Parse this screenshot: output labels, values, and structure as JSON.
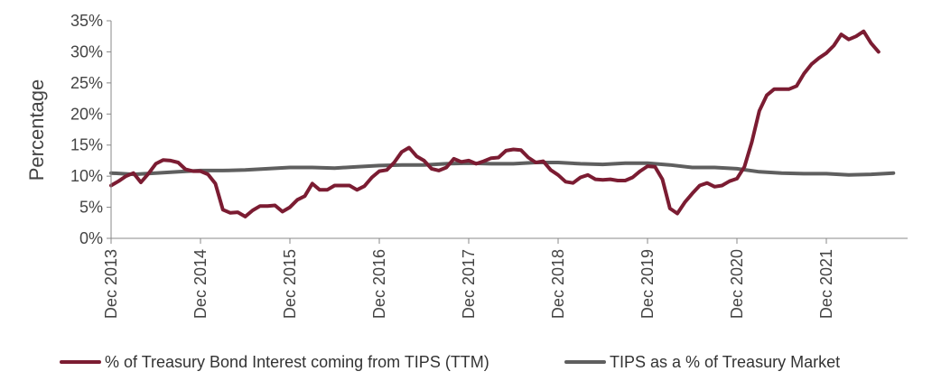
{
  "chart_data": {
    "type": "line",
    "title": "",
    "xlabel": "",
    "ylabel": "Percentage",
    "x_ticks": [
      "Dec 2013",
      "Dec 2014",
      "Dec 2015",
      "Dec 2016",
      "Dec 2017",
      "Dec 2018",
      "Dec 2019",
      "Dec 2020",
      "Dec 2021"
    ],
    "y_ticks": [
      "0%",
      "5%",
      "10%",
      "15%",
      "20%",
      "25%",
      "30%",
      "35%"
    ],
    "ylim": [
      0,
      35
    ],
    "grid": false,
    "legend_position": "bottom",
    "series": [
      {
        "name": "% of Treasury Bond Interest coming from TIPS (TTM)",
        "color": "#7b1c32",
        "points": [
          [
            "2013-12",
            8.5
          ],
          [
            "2014-01",
            9.2
          ],
          [
            "2014-02",
            10.0
          ],
          [
            "2014-03",
            10.5
          ],
          [
            "2014-04",
            9.0
          ],
          [
            "2014-05",
            10.4
          ],
          [
            "2014-06",
            12.0
          ],
          [
            "2014-07",
            12.6
          ],
          [
            "2014-08",
            12.5
          ],
          [
            "2014-09",
            12.2
          ],
          [
            "2014-10",
            11.1
          ],
          [
            "2014-11",
            10.8
          ],
          [
            "2014-12",
            10.8
          ],
          [
            "2015-01",
            10.3
          ],
          [
            "2015-02",
            8.8
          ],
          [
            "2015-03",
            4.6
          ],
          [
            "2015-04",
            4.1
          ],
          [
            "2015-05",
            4.2
          ],
          [
            "2015-06",
            3.5
          ],
          [
            "2015-07",
            4.5
          ],
          [
            "2015-08",
            5.2
          ],
          [
            "2015-09",
            5.2
          ],
          [
            "2015-10",
            5.3
          ],
          [
            "2015-11",
            4.3
          ],
          [
            "2015-12",
            5.0
          ],
          [
            "2016-01",
            6.2
          ],
          [
            "2016-02",
            6.8
          ],
          [
            "2016-03",
            8.8
          ],
          [
            "2016-04",
            7.8
          ],
          [
            "2016-05",
            7.8
          ],
          [
            "2016-06",
            8.5
          ],
          [
            "2016-07",
            8.5
          ],
          [
            "2016-08",
            8.5
          ],
          [
            "2016-09",
            7.8
          ],
          [
            "2016-10",
            8.4
          ],
          [
            "2016-11",
            9.8
          ],
          [
            "2016-12",
            10.8
          ],
          [
            "2017-01",
            11.0
          ],
          [
            "2017-02",
            12.2
          ],
          [
            "2017-03",
            13.9
          ],
          [
            "2017-04",
            14.6
          ],
          [
            "2017-05",
            13.2
          ],
          [
            "2017-06",
            12.5
          ],
          [
            "2017-07",
            11.2
          ],
          [
            "2017-08",
            10.9
          ],
          [
            "2017-09",
            11.4
          ],
          [
            "2017-10",
            12.8
          ],
          [
            "2017-11",
            12.3
          ],
          [
            "2017-12",
            12.5
          ],
          [
            "2018-01",
            12.0
          ],
          [
            "2018-02",
            12.4
          ],
          [
            "2018-03",
            12.9
          ],
          [
            "2018-04",
            13.0
          ],
          [
            "2018-05",
            14.1
          ],
          [
            "2018-06",
            14.3
          ],
          [
            "2018-07",
            14.2
          ],
          [
            "2018-08",
            13.0
          ],
          [
            "2018-09",
            12.2
          ],
          [
            "2018-10",
            12.4
          ],
          [
            "2018-11",
            11.0
          ],
          [
            "2018-12",
            10.2
          ],
          [
            "2019-01",
            9.1
          ],
          [
            "2019-02",
            8.9
          ],
          [
            "2019-03",
            9.8
          ],
          [
            "2019-04",
            10.2
          ],
          [
            "2019-05",
            9.5
          ],
          [
            "2019-06",
            9.4
          ],
          [
            "2019-07",
            9.5
          ],
          [
            "2019-08",
            9.3
          ],
          [
            "2019-09",
            9.3
          ],
          [
            "2019-10",
            9.8
          ],
          [
            "2019-11",
            10.8
          ],
          [
            "2019-12",
            11.6
          ],
          [
            "2020-01",
            11.5
          ],
          [
            "2020-02",
            9.5
          ],
          [
            "2020-03",
            4.8
          ],
          [
            "2020-04",
            4.0
          ],
          [
            "2020-05",
            5.8
          ],
          [
            "2020-06",
            7.2
          ],
          [
            "2020-07",
            8.5
          ],
          [
            "2020-08",
            8.9
          ],
          [
            "2020-09",
            8.3
          ],
          [
            "2020-10",
            8.5
          ],
          [
            "2020-11",
            9.2
          ],
          [
            "2020-12",
            9.6
          ],
          [
            "2021-01",
            11.5
          ],
          [
            "2021-02",
            15.5
          ],
          [
            "2021-03",
            20.5
          ],
          [
            "2021-04",
            23.0
          ],
          [
            "2021-05",
            24.0
          ],
          [
            "2021-06",
            24.0
          ],
          [
            "2021-07",
            24.0
          ],
          [
            "2021-08",
            24.5
          ],
          [
            "2021-09",
            26.5
          ],
          [
            "2021-10",
            28.0
          ],
          [
            "2021-11",
            29.0
          ],
          [
            "2021-12",
            29.8
          ],
          [
            "2022-01",
            31.0
          ],
          [
            "2022-02",
            32.8
          ],
          [
            "2022-03",
            32.0
          ],
          [
            "2022-04",
            32.5
          ],
          [
            "2022-05",
            33.3
          ],
          [
            "2022-06",
            31.4
          ],
          [
            "2022-07",
            30.0
          ]
        ]
      },
      {
        "name": "TIPS as a % of Treasury Market",
        "color": "#5f5f5f",
        "points": [
          [
            "2013-12",
            10.5
          ],
          [
            "2014-03",
            10.3
          ],
          [
            "2014-06",
            10.5
          ],
          [
            "2014-09",
            10.7
          ],
          [
            "2014-12",
            10.9
          ],
          [
            "2015-03",
            10.9
          ],
          [
            "2015-06",
            11.0
          ],
          [
            "2015-09",
            11.2
          ],
          [
            "2015-12",
            11.4
          ],
          [
            "2016-03",
            11.4
          ],
          [
            "2016-06",
            11.3
          ],
          [
            "2016-09",
            11.5
          ],
          [
            "2016-12",
            11.7
          ],
          [
            "2017-03",
            11.8
          ],
          [
            "2017-06",
            11.8
          ],
          [
            "2017-09",
            12.0
          ],
          [
            "2017-12",
            12.1
          ],
          [
            "2018-03",
            12.0
          ],
          [
            "2018-06",
            12.0
          ],
          [
            "2018-09",
            12.2
          ],
          [
            "2018-12",
            12.2
          ],
          [
            "2019-03",
            12.0
          ],
          [
            "2019-06",
            11.9
          ],
          [
            "2019-09",
            12.1
          ],
          [
            "2019-12",
            12.1
          ],
          [
            "2020-03",
            11.8
          ],
          [
            "2020-06",
            11.4
          ],
          [
            "2020-09",
            11.4
          ],
          [
            "2020-12",
            11.2
          ],
          [
            "2021-03",
            10.7
          ],
          [
            "2021-06",
            10.5
          ],
          [
            "2021-09",
            10.4
          ],
          [
            "2021-12",
            10.4
          ],
          [
            "2022-03",
            10.2
          ],
          [
            "2022-06",
            10.3
          ],
          [
            "2022-09",
            10.5
          ]
        ]
      }
    ]
  }
}
